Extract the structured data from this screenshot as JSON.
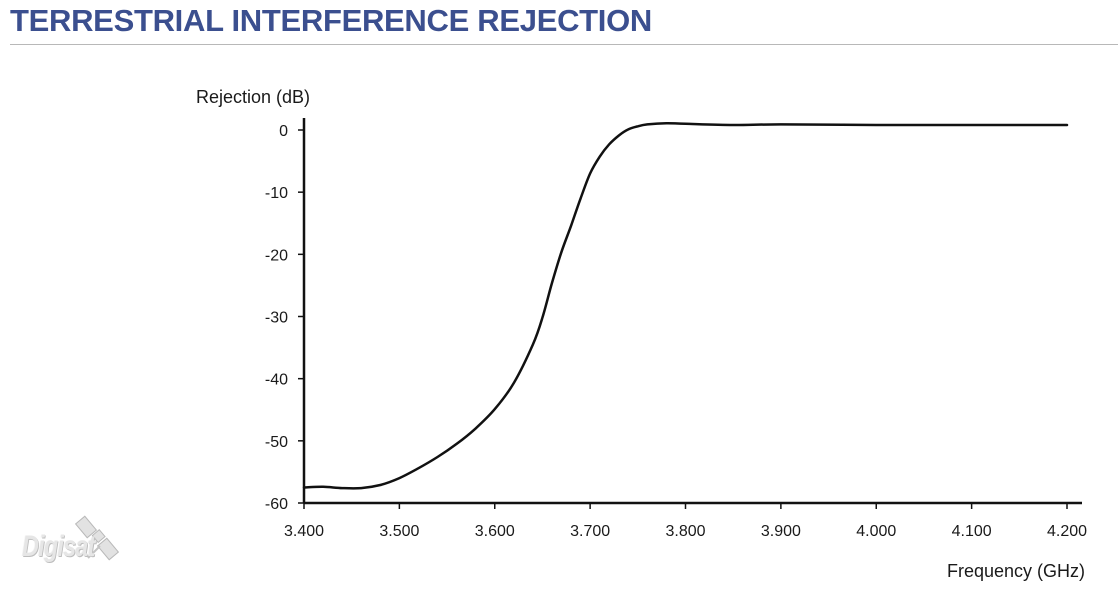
{
  "header": {
    "title": "TERRESTRIAL INTERFERENCE REJECTION"
  },
  "logo": {
    "text": "Digisat",
    "icon": "satellite-icon"
  },
  "colors": {
    "title": "#3b4f8f",
    "line": "#111111",
    "axis": "#111111"
  },
  "chart_data": {
    "type": "line",
    "title": "",
    "xlabel": "Frequency (GHz)",
    "ylabel": "Rejection (dB)",
    "xlim": [
      3.4,
      4.2
    ],
    "ylim": [
      -60,
      0
    ],
    "grid": false,
    "x_ticks": [
      3.4,
      3.5,
      3.6,
      3.7,
      3.8,
      3.9,
      4.0,
      4.1,
      4.2
    ],
    "x_tick_labels": [
      "3.400",
      "3.500",
      "3.600",
      "3.700",
      "3.800",
      "3.900",
      "4.000",
      "4.100",
      "4.200"
    ],
    "y_ticks": [
      0,
      -10,
      -20,
      -30,
      -40,
      -50,
      -60
    ],
    "y_tick_labels": [
      "0",
      "-10",
      "-20",
      "-30",
      "-40",
      "-50",
      "-60"
    ],
    "series": [
      {
        "x": [
          3.4,
          3.42,
          3.44,
          3.46,
          3.48,
          3.5,
          3.52,
          3.54,
          3.56,
          3.58,
          3.6,
          3.62,
          3.64,
          3.65,
          3.66,
          3.67,
          3.68,
          3.69,
          3.7,
          3.71,
          3.72,
          3.73,
          3.74,
          3.75,
          3.76,
          3.78,
          3.8,
          3.85,
          3.9,
          4.0,
          4.1,
          4.2
        ],
        "y": [
          -57.5,
          -57.4,
          -57.6,
          -57.6,
          -57.1,
          -56.0,
          -54.4,
          -52.6,
          -50.5,
          -48.0,
          -44.9,
          -40.7,
          -34.5,
          -30.2,
          -24.6,
          -19.6,
          -15.4,
          -11.0,
          -7.0,
          -4.3,
          -2.3,
          -0.9,
          0.1,
          0.6,
          0.9,
          1.1,
          1.0,
          0.8,
          0.9,
          0.8,
          0.8,
          0.8
        ]
      }
    ]
  }
}
